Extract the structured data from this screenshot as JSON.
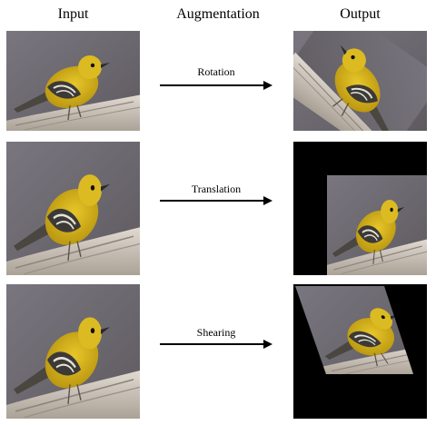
{
  "headers": {
    "input": "Input",
    "augmentation": "Augmentation",
    "output": "Output"
  },
  "rows": [
    {
      "label": "Rotation"
    },
    {
      "label": "Translation"
    },
    {
      "label": "Shearing"
    }
  ],
  "colors": {
    "background_bird": "#6f6a70",
    "branch": "#cfc7bd",
    "bird_yellow": "#d8b31a",
    "bird_wing": "#3c3a36",
    "fill_black": "#000000"
  }
}
